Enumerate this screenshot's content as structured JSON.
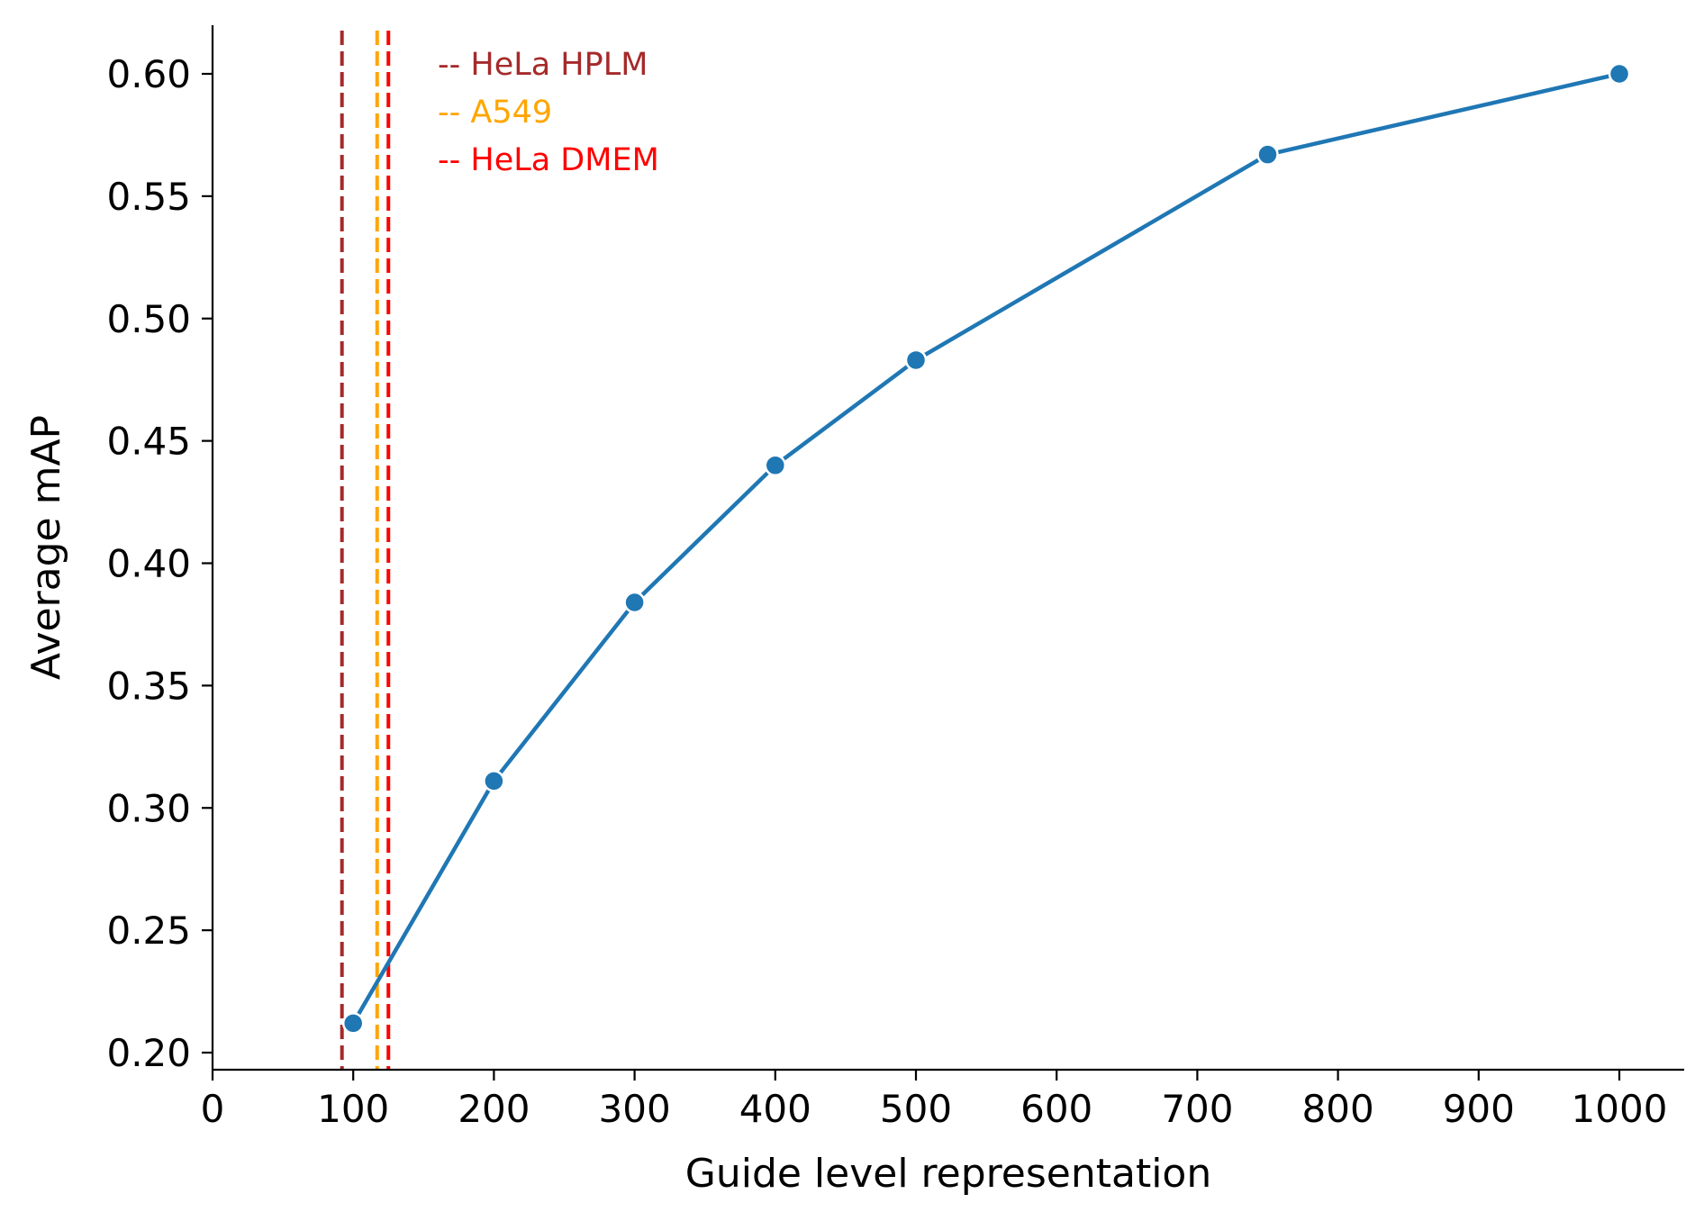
{
  "chart_data": {
    "type": "line",
    "title": "",
    "xlabel": "Guide level representation",
    "ylabel": "Average mAP",
    "xlim": [
      0,
      1045
    ],
    "ylim": [
      0.193,
      0.62
    ],
    "xticks": [
      0,
      100,
      200,
      300,
      400,
      500,
      600,
      700,
      800,
      900,
      1000
    ],
    "yticks": [
      0.2,
      0.25,
      0.3,
      0.35,
      0.4,
      0.45,
      0.5,
      0.55,
      0.6
    ],
    "xtick_labels": [
      "0",
      "100",
      "200",
      "300",
      "400",
      "500",
      "600",
      "700",
      "800",
      "900",
      "1000"
    ],
    "ytick_labels": [
      "0.20",
      "0.25",
      "0.30",
      "0.35",
      "0.40",
      "0.45",
      "0.50",
      "0.55",
      "0.60"
    ],
    "grid": false,
    "series": [
      {
        "color": "#1f77b4",
        "x": [
          100,
          200,
          300,
          400,
          500,
          750,
          1000
        ],
        "y": [
          0.212,
          0.311,
          0.384,
          0.44,
          0.483,
          0.567,
          0.6
        ]
      }
    ],
    "reference_lines": [
      {
        "label": "-- HeLa HPLM",
        "x": 92,
        "color": "#a52a2a"
      },
      {
        "label": "-- A549",
        "x": 117,
        "color": "#ffa500"
      },
      {
        "label": "-- HeLa DMEM",
        "x": 125,
        "color": "#ff0000"
      }
    ]
  }
}
